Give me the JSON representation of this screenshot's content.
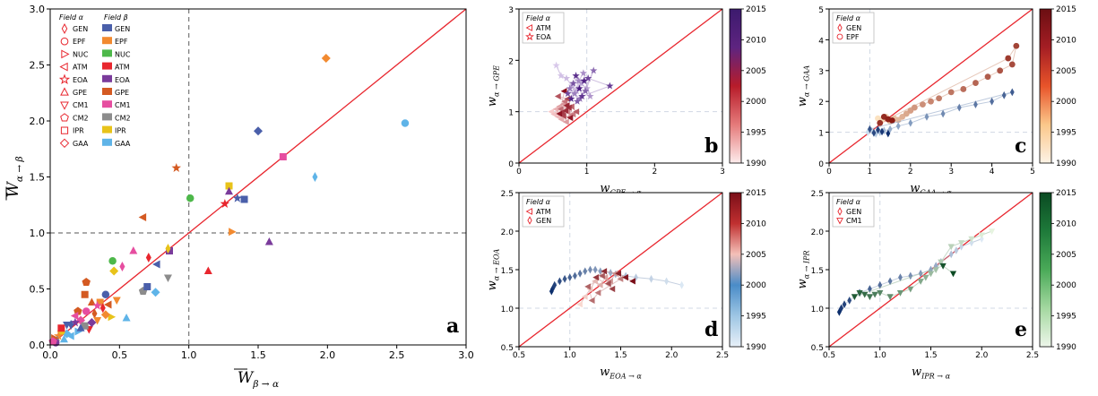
{
  "chart_data": [
    {
      "panel": "a",
      "type": "scatter",
      "letter": "a",
      "xlabel_main": "W",
      "xlabel_sub": "β → α",
      "ylabel_main": "W",
      "ylabel_sub": "α → β",
      "xlim": [
        0,
        3
      ],
      "ylim": [
        0,
        3
      ],
      "xticks": [
        "0.0",
        "0.5",
        "1.0",
        "1.5",
        "2.0",
        "2.5",
        "3.0"
      ],
      "yticks": [
        "0.0",
        "0.5",
        "1.0",
        "1.5",
        "2.0",
        "2.5",
        "3.0"
      ],
      "legend_header_alpha": "Field α",
      "legend_header_beta": "Field β",
      "fields": [
        "GEN",
        "EPF",
        "NUC",
        "ATM",
        "EOA",
        "GPE",
        "CM1",
        "CM2",
        "IPR",
        "GAA"
      ],
      "marker_shapes": [
        "thin-diamond",
        "circle",
        "triangle-right",
        "triangle-left",
        "star",
        "triangle-up",
        "triangle-down",
        "pentagon",
        "square",
        "diamond"
      ],
      "beta_colors": [
        "#4a5faa",
        "#f28a30",
        "#4db84a",
        "#e8262e",
        "#7a3b9b",
        "#d45a22",
        "#e64ea0",
        "#8c8c8c",
        "#e8c31a",
        "#5fb4e8"
      ],
      "reference": "diagonal y=x, dashed lines at x=1 and y=1",
      "points": [
        {
          "x": 1.99,
          "y": 2.56,
          "m": 9,
          "c": 1
        },
        {
          "x": 2.56,
          "y": 1.98,
          "m": 1,
          "c": 9
        },
        {
          "x": 1.5,
          "y": 1.91,
          "m": 9,
          "c": 0
        },
        {
          "x": 1.91,
          "y": 1.5,
          "m": 0,
          "c": 9
        },
        {
          "x": 1.68,
          "y": 1.68,
          "m": 8,
          "c": 6
        },
        {
          "x": 0.91,
          "y": 1.58,
          "m": 4,
          "c": 5
        },
        {
          "x": 1.01,
          "y": 1.31,
          "m": 1,
          "c": 2
        },
        {
          "x": 1.29,
          "y": 1.42,
          "m": 8,
          "c": 8
        },
        {
          "x": 1.29,
          "y": 1.37,
          "m": 5,
          "c": 4
        },
        {
          "x": 1.26,
          "y": 1.26,
          "m": 4,
          "c": 3
        },
        {
          "x": 1.35,
          "y": 1.31,
          "m": 4,
          "c": 0
        },
        {
          "x": 1.4,
          "y": 1.3,
          "m": 8,
          "c": 0
        },
        {
          "x": 0.67,
          "y": 1.14,
          "m": 3,
          "c": 5
        },
        {
          "x": 1.31,
          "y": 1.01,
          "m": 2,
          "c": 1
        },
        {
          "x": 1.58,
          "y": 0.92,
          "m": 5,
          "c": 4
        },
        {
          "x": 0.71,
          "y": 0.78,
          "m": 0,
          "c": 3
        },
        {
          "x": 0.6,
          "y": 0.84,
          "m": 5,
          "c": 6
        },
        {
          "x": 0.86,
          "y": 0.84,
          "m": 8,
          "c": 4
        },
        {
          "x": 0.85,
          "y": 0.86,
          "m": 0,
          "c": 8
        },
        {
          "x": 1.14,
          "y": 0.66,
          "m": 5,
          "c": 3
        },
        {
          "x": 0.45,
          "y": 0.75,
          "m": 1,
          "c": 2
        },
        {
          "x": 0.52,
          "y": 0.7,
          "m": 0,
          "c": 6
        },
        {
          "x": 0.77,
          "y": 0.72,
          "m": 3,
          "c": 0
        },
        {
          "x": 0.46,
          "y": 0.66,
          "m": 9,
          "c": 8
        },
        {
          "x": 0.85,
          "y": 0.6,
          "m": 6,
          "c": 7
        },
        {
          "x": 0.76,
          "y": 0.47,
          "m": 9,
          "c": 9
        },
        {
          "x": 0.67,
          "y": 0.48,
          "m": 7,
          "c": 7
        },
        {
          "x": 0.7,
          "y": 0.52,
          "m": 8,
          "c": 0
        },
        {
          "x": 0.26,
          "y": 0.56,
          "m": 7,
          "c": 5
        },
        {
          "x": 0.4,
          "y": 0.45,
          "m": 1,
          "c": 0
        },
        {
          "x": 0.25,
          "y": 0.45,
          "m": 8,
          "c": 5
        },
        {
          "x": 0.3,
          "y": 0.38,
          "m": 5,
          "c": 5
        },
        {
          "x": 0.36,
          "y": 0.38,
          "m": 8,
          "c": 1
        },
        {
          "x": 0.48,
          "y": 0.4,
          "m": 6,
          "c": 1
        },
        {
          "x": 0.42,
          "y": 0.36,
          "m": 3,
          "c": 5
        },
        {
          "x": 0.38,
          "y": 0.33,
          "m": 0,
          "c": 3
        },
        {
          "x": 0.34,
          "y": 0.35,
          "m": 4,
          "c": 6
        },
        {
          "x": 0.32,
          "y": 0.28,
          "m": 0,
          "c": 5
        },
        {
          "x": 0.55,
          "y": 0.24,
          "m": 5,
          "c": 9
        },
        {
          "x": 0.44,
          "y": 0.25,
          "m": 2,
          "c": 8
        },
        {
          "x": 0.4,
          "y": 0.27,
          "m": 9,
          "c": 1
        },
        {
          "x": 0.34,
          "y": 0.22,
          "m": 6,
          "c": 1
        },
        {
          "x": 0.26,
          "y": 0.3,
          "m": 1,
          "c": 6
        },
        {
          "x": 0.22,
          "y": 0.22,
          "m": 9,
          "c": 6
        },
        {
          "x": 0.2,
          "y": 0.3,
          "m": 7,
          "c": 5
        },
        {
          "x": 0.18,
          "y": 0.2,
          "m": 4,
          "c": 4
        },
        {
          "x": 0.15,
          "y": 0.18,
          "m": 0,
          "c": 0
        },
        {
          "x": 0.28,
          "y": 0.14,
          "m": 6,
          "c": 3
        },
        {
          "x": 0.2,
          "y": 0.12,
          "m": 2,
          "c": 9
        },
        {
          "x": 0.25,
          "y": 0.17,
          "m": 8,
          "c": 7
        },
        {
          "x": 0.15,
          "y": 0.08,
          "m": 3,
          "c": 9
        },
        {
          "x": 0.12,
          "y": 0.1,
          "m": 9,
          "c": 9
        },
        {
          "x": 0.08,
          "y": 0.12,
          "m": 1,
          "c": 8
        },
        {
          "x": 0.1,
          "y": 0.05,
          "m": 5,
          "c": 9
        },
        {
          "x": 0.06,
          "y": 0.08,
          "m": 4,
          "c": 1
        },
        {
          "x": 0.05,
          "y": 0.04,
          "m": 0,
          "c": 7
        },
        {
          "x": 0.03,
          "y": 0.06,
          "m": 2,
          "c": 5
        },
        {
          "x": 0.04,
          "y": 0.02,
          "m": 1,
          "c": 4
        },
        {
          "x": 0.02,
          "y": 0.03,
          "m": 7,
          "c": 6
        },
        {
          "x": 0.08,
          "y": 0.15,
          "m": 8,
          "c": 3
        },
        {
          "x": 0.12,
          "y": 0.18,
          "m": 6,
          "c": 0
        },
        {
          "x": 0.18,
          "y": 0.26,
          "m": 3,
          "c": 6
        },
        {
          "x": 0.22,
          "y": 0.15,
          "m": 5,
          "c": 0
        },
        {
          "x": 0.3,
          "y": 0.2,
          "m": 9,
          "c": 4
        }
      ]
    },
    {
      "panel": "b",
      "type": "scatter",
      "letter": "b",
      "xlabel_main": "w",
      "xlabel_sub": "GPE → α",
      "ylabel_main": "w",
      "ylabel_sub": "α → GPE",
      "xlim": [
        0,
        3
      ],
      "ylim": [
        0,
        3
      ],
      "xticks": [
        "0",
        "1",
        "2",
        "3"
      ],
      "yticks": [
        "0",
        "1",
        "2",
        "3"
      ],
      "legend_header": "Field α",
      "legend": [
        {
          "label": "ATM",
          "shape": "triangle-left"
        },
        {
          "label": "EOA",
          "shape": "star"
        }
      ],
      "colorbar": {
        "ticks": [
          "1990",
          "1995",
          "2000",
          "2005",
          "2010",
          "2015"
        ],
        "colors": [
          "#fdecec",
          "#e57a7a",
          "#b71c2a",
          "#5e2480",
          "#3c1a6e"
        ]
      },
      "series": [
        {
          "name": "ATM",
          "shape": "triangle-left",
          "color_from": "#f7caca",
          "color_to": "#8b0d1d",
          "x": [
            0.48,
            0.52,
            0.58,
            0.55,
            0.63,
            0.6,
            0.7,
            0.66,
            0.75,
            0.72,
            0.8,
            0.68,
            0.62,
            0.78,
            0.85,
            0.58,
            0.72,
            0.66,
            0.64,
            0.74,
            0.69,
            0.71,
            0.76,
            0.6,
            0.67
          ],
          "y": [
            1.0,
            0.95,
            0.9,
            1.05,
            0.85,
            1.1,
            0.8,
            1.15,
            0.9,
            1.0,
            0.95,
            1.2,
            1.05,
            1.1,
            1.0,
            1.3,
            1.25,
            0.92,
            0.98,
            1.08,
            1.02,
            1.12,
            0.88,
            0.96,
            1.4
          ]
        },
        {
          "name": "EOA",
          "shape": "star",
          "color_from": "#d8c8ea",
          "color_to": "#4a1a80",
          "x": [
            0.55,
            0.62,
            0.7,
            0.78,
            0.85,
            0.92,
            1.0,
            1.05,
            0.95,
            0.88,
            0.82,
            0.75,
            0.9,
            1.1,
            0.98,
            0.86,
            0.8,
            0.72,
            1.02,
            1.34,
            0.93,
            0.84,
            0.77,
            0.96,
            0.89
          ],
          "y": [
            1.9,
            1.7,
            1.65,
            1.5,
            1.4,
            1.55,
            1.45,
            1.3,
            1.75,
            1.6,
            1.35,
            1.45,
            1.25,
            1.8,
            1.4,
            1.2,
            1.55,
            1.35,
            1.65,
            1.5,
            1.3,
            1.7,
            1.25,
            1.6,
            1.45
          ]
        }
      ]
    },
    {
      "panel": "c",
      "type": "scatter",
      "letter": "c",
      "xlabel_main": "w",
      "xlabel_sub": "GAA → α",
      "ylabel_main": "w",
      "ylabel_sub": "α → GAA",
      "xlim": [
        0,
        5
      ],
      "ylim": [
        0,
        5
      ],
      "xticks": [
        "0",
        "1",
        "2",
        "3",
        "4",
        "5"
      ],
      "yticks": [
        "0",
        "1",
        "2",
        "3",
        "4",
        "5"
      ],
      "legend_header": "Field α",
      "legend": [
        {
          "label": "GEN",
          "shape": "thin-diamond"
        },
        {
          "label": "EPF",
          "shape": "circle"
        }
      ],
      "colorbar": {
        "ticks": [
          "1990",
          "1995",
          "2000",
          "2005",
          "2010",
          "2015"
        ],
        "colors": [
          "#fdf3e6",
          "#fbc78a",
          "#e8542a",
          "#a51e24",
          "#6b0e12"
        ]
      },
      "series": [
        {
          "name": "EPF",
          "shape": "circle",
          "color_from": "#fbe2c0",
          "color_to": "#8b1a12",
          "x": [
            1.2,
            1.3,
            1.4,
            1.5,
            1.6,
            1.7,
            1.8,
            1.9,
            2.0,
            2.1,
            2.3,
            2.5,
            2.7,
            3.0,
            3.3,
            3.6,
            3.9,
            4.2,
            4.5,
            4.6,
            4.4,
            1.25,
            1.35,
            1.45,
            1.55
          ],
          "y": [
            1.45,
            1.4,
            1.5,
            1.35,
            1.45,
            1.4,
            1.5,
            1.6,
            1.7,
            1.8,
            1.9,
            2.0,
            2.1,
            2.3,
            2.4,
            2.6,
            2.8,
            3.0,
            3.2,
            3.8,
            3.4,
            1.3,
            1.5,
            1.42,
            1.38
          ]
        },
        {
          "name": "GEN",
          "shape": "thin-diamond",
          "color_from": "#c8dcee",
          "color_to": "#0e2e6e",
          "x": [
            0.95,
            1.05,
            1.15,
            1.25,
            1.35,
            1.5,
            1.7,
            2.0,
            2.4,
            2.8,
            3.2,
            3.6,
            4.0,
            4.3,
            4.5,
            1.0,
            1.1,
            1.2,
            1.3,
            1.45
          ],
          "y": [
            1.0,
            1.05,
            0.95,
            1.0,
            1.05,
            1.1,
            1.2,
            1.3,
            1.5,
            1.6,
            1.8,
            1.9,
            2.0,
            2.2,
            2.3,
            1.1,
            0.98,
            1.08,
            1.02,
            0.96
          ]
        }
      ]
    },
    {
      "panel": "d",
      "type": "scatter",
      "letter": "d",
      "xlabel_main": "w",
      "xlabel_sub": "EOA → α",
      "ylabel_main": "w",
      "ylabel_sub": "α → EOA",
      "xlim": [
        0.5,
        2.5
      ],
      "ylim": [
        0.5,
        2.5
      ],
      "xticks": [
        "0.5",
        "1.0",
        "1.5",
        "2.0",
        "2.5"
      ],
      "yticks": [
        "0.5",
        "1.0",
        "1.5",
        "2.0",
        "2.5"
      ],
      "legend_header": "Field α",
      "legend": [
        {
          "label": "ATM",
          "shape": "triangle-left"
        },
        {
          "label": "GEN",
          "shape": "thin-diamond"
        }
      ],
      "colorbar": {
        "ticks": [
          "1990",
          "1995",
          "2000",
          "2005",
          "2010",
          "2015"
        ],
        "colors": [
          "#e8f0f8",
          "#9ec6e4",
          "#4a8cc8",
          "#f4c0b8",
          "#c03030",
          "#7a0e18"
        ]
      },
      "series": [
        {
          "name": "GEN",
          "shape": "thin-diamond",
          "color_from": "#dbe8f4",
          "color_to": "#0c2e6c",
          "x": [
            2.1,
            1.95,
            1.8,
            1.65,
            1.55,
            1.45,
            1.4,
            1.3,
            1.25,
            1.2,
            1.15,
            1.1,
            1.05,
            1.0,
            0.95,
            0.9,
            0.85,
            0.83,
            0.82
          ],
          "y": [
            1.3,
            1.35,
            1.38,
            1.4,
            1.42,
            1.44,
            1.46,
            1.48,
            1.5,
            1.5,
            1.48,
            1.45,
            1.42,
            1.4,
            1.38,
            1.35,
            1.3,
            1.25,
            1.22
          ]
        },
        {
          "name": "ATM",
          "shape": "triangle-left",
          "color_from": "#f8d8d0",
          "color_to": "#7a0e18",
          "x": [
            1.1,
            1.15,
            1.2,
            1.25,
            1.3,
            1.35,
            1.4,
            1.45,
            1.5,
            1.28,
            1.22,
            1.18,
            1.32,
            1.38,
            1.42,
            1.26,
            1.34,
            1.48,
            1.55,
            1.62
          ],
          "y": [
            1.05,
            1.15,
            1.25,
            1.35,
            1.3,
            1.4,
            1.35,
            1.45,
            1.38,
            1.2,
            1.1,
            1.28,
            1.42,
            1.32,
            1.25,
            1.4,
            1.48,
            1.45,
            1.4,
            1.35
          ]
        }
      ]
    },
    {
      "panel": "e",
      "type": "scatter",
      "letter": "e",
      "xlabel_main": "w",
      "xlabel_sub": "IPR → α",
      "ylabel_main": "w",
      "ylabel_sub": "α → IPR",
      "xlim": [
        0.5,
        2.5
      ],
      "ylim": [
        0.5,
        2.5
      ],
      "xticks": [
        "0.5",
        "1.0",
        "1.5",
        "2.0",
        "2.5"
      ],
      "yticks": [
        "0.5",
        "1.0",
        "1.5",
        "2.0",
        "2.5"
      ],
      "legend_header": "Field α",
      "legend": [
        {
          "label": "GEN",
          "shape": "thin-diamond"
        },
        {
          "label": "CM1",
          "shape": "triangle-down"
        }
      ],
      "colorbar": {
        "ticks": [
          "1990",
          "1995",
          "2000",
          "2005",
          "2010",
          "2015"
        ],
        "colors": [
          "#edf6ea",
          "#a4d8a0",
          "#4aaa58",
          "#1e7a3a",
          "#0a4a22"
        ]
      },
      "series": [
        {
          "name": "GEN",
          "shape": "thin-diamond",
          "color_from": "#dde9f5",
          "color_to": "#0c2e6c",
          "x": [
            2.0,
            1.9,
            1.8,
            1.75,
            1.7,
            1.6,
            1.55,
            1.5,
            1.4,
            1.3,
            1.2,
            1.1,
            1.0,
            0.9,
            0.8,
            0.7,
            0.65,
            0.62,
            0.6
          ],
          "y": [
            1.9,
            1.85,
            1.8,
            1.75,
            1.7,
            1.6,
            1.55,
            1.5,
            1.45,
            1.42,
            1.4,
            1.35,
            1.3,
            1.25,
            1.2,
            1.1,
            1.05,
            1.0,
            0.95
          ]
        },
        {
          "name": "CM1",
          "shape": "triangle-down",
          "color_from": "#e6f4e0",
          "color_to": "#0a4a22",
          "x": [
            2.1,
            2.0,
            1.9,
            1.8,
            1.7,
            1.6,
            1.55,
            1.5,
            1.45,
            1.4,
            1.3,
            1.2,
            1.1,
            1.0,
            0.95,
            0.9,
            0.85,
            0.8,
            0.75,
            1.62,
            1.72
          ],
          "y": [
            2.0,
            1.95,
            1.9,
            1.85,
            1.8,
            1.6,
            1.5,
            1.45,
            1.4,
            1.35,
            1.25,
            1.2,
            1.15,
            1.2,
            1.18,
            1.15,
            1.18,
            1.2,
            1.15,
            1.55,
            1.45
          ]
        }
      ]
    }
  ]
}
